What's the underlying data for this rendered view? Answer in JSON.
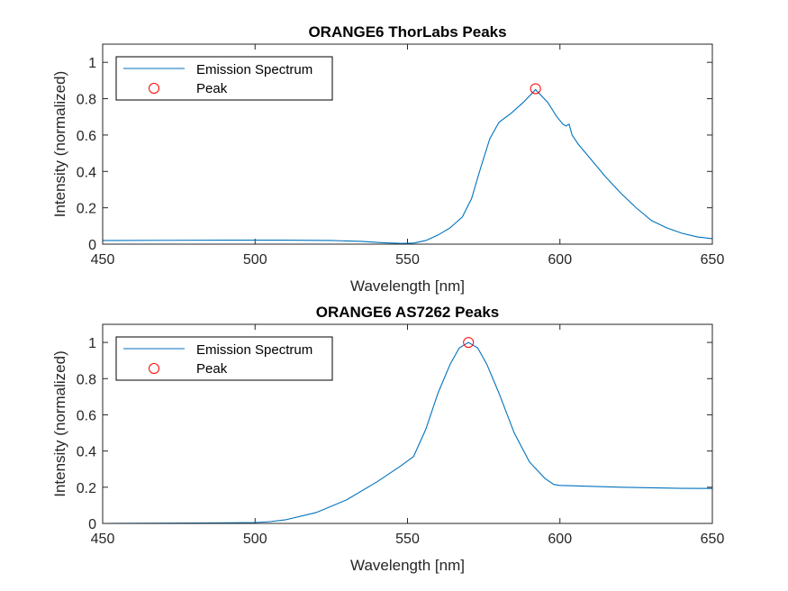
{
  "colors": {
    "line": "#0072BD",
    "peak": "#FF0000",
    "axis": "#262626"
  },
  "chart_data": [
    {
      "type": "line",
      "title": "ORANGE6 ThorLabs Peaks",
      "xlabel": "Wavelength [nm]",
      "ylabel": "Intensity (normalized)",
      "xlim": [
        450,
        650
      ],
      "ylim": [
        0,
        1.1
      ],
      "xticks": [
        450,
        500,
        550,
        600,
        650
      ],
      "yticks": [
        0,
        0.2,
        0.4,
        0.6,
        0.8,
        1
      ],
      "ytick_labels": [
        "0",
        "0.2",
        "0.4",
        "0.6",
        "0.8",
        "1"
      ],
      "legend": {
        "location": "top-left",
        "entries": [
          "Emission Spectrum",
          "Peak"
        ]
      },
      "series": [
        {
          "name": "Emission Spectrum",
          "x": [
            450,
            470,
            490,
            510,
            525,
            535,
            542,
            548,
            552,
            556,
            560,
            564,
            568,
            571,
            574,
            577,
            580,
            584,
            588,
            592,
            596,
            599,
            601,
            602,
            603,
            604,
            606,
            610,
            615,
            620,
            625,
            630,
            635,
            640,
            645,
            650
          ],
          "y": [
            0.02,
            0.021,
            0.022,
            0.022,
            0.02,
            0.015,
            0.008,
            0.004,
            0.006,
            0.02,
            0.05,
            0.09,
            0.15,
            0.25,
            0.42,
            0.58,
            0.67,
            0.72,
            0.78,
            0.85,
            0.78,
            0.7,
            0.66,
            0.65,
            0.66,
            0.6,
            0.55,
            0.47,
            0.37,
            0.28,
            0.2,
            0.13,
            0.09,
            0.06,
            0.04,
            0.03
          ]
        },
        {
          "name": "Peak",
          "marker": "circle",
          "x": [
            592
          ],
          "y": [
            0.855
          ]
        }
      ]
    },
    {
      "type": "line",
      "title": "ORANGE6 AS7262 Peaks",
      "xlabel": "Wavelength [nm]",
      "ylabel": "Intensity (normalized)",
      "xlim": [
        450,
        650
      ],
      "ylim": [
        0,
        1.1
      ],
      "xticks": [
        450,
        500,
        550,
        600,
        650
      ],
      "yticks": [
        0,
        0.2,
        0.4,
        0.6,
        0.8,
        1
      ],
      "ytick_labels": [
        "0",
        "0.2",
        "0.4",
        "0.6",
        "0.8",
        "1"
      ],
      "legend": {
        "location": "top-left",
        "entries": [
          "Emission Spectrum",
          "Peak"
        ]
      },
      "series": [
        {
          "name": "Emission Spectrum",
          "x": [
            450,
            480,
            500,
            505,
            510,
            520,
            530,
            540,
            548,
            552,
            556,
            560,
            564,
            567,
            570,
            573,
            576,
            580,
            585,
            590,
            595,
            598,
            600,
            610,
            620,
            630,
            640,
            650
          ],
          "y": [
            0.0,
            0.002,
            0.005,
            0.01,
            0.02,
            0.06,
            0.13,
            0.23,
            0.32,
            0.37,
            0.52,
            0.72,
            0.88,
            0.97,
            1.0,
            0.97,
            0.88,
            0.72,
            0.5,
            0.34,
            0.25,
            0.215,
            0.21,
            0.205,
            0.2,
            0.197,
            0.194,
            0.193
          ]
        },
        {
          "name": "Peak",
          "marker": "circle",
          "x": [
            570
          ],
          "y": [
            1.0
          ]
        }
      ]
    }
  ]
}
